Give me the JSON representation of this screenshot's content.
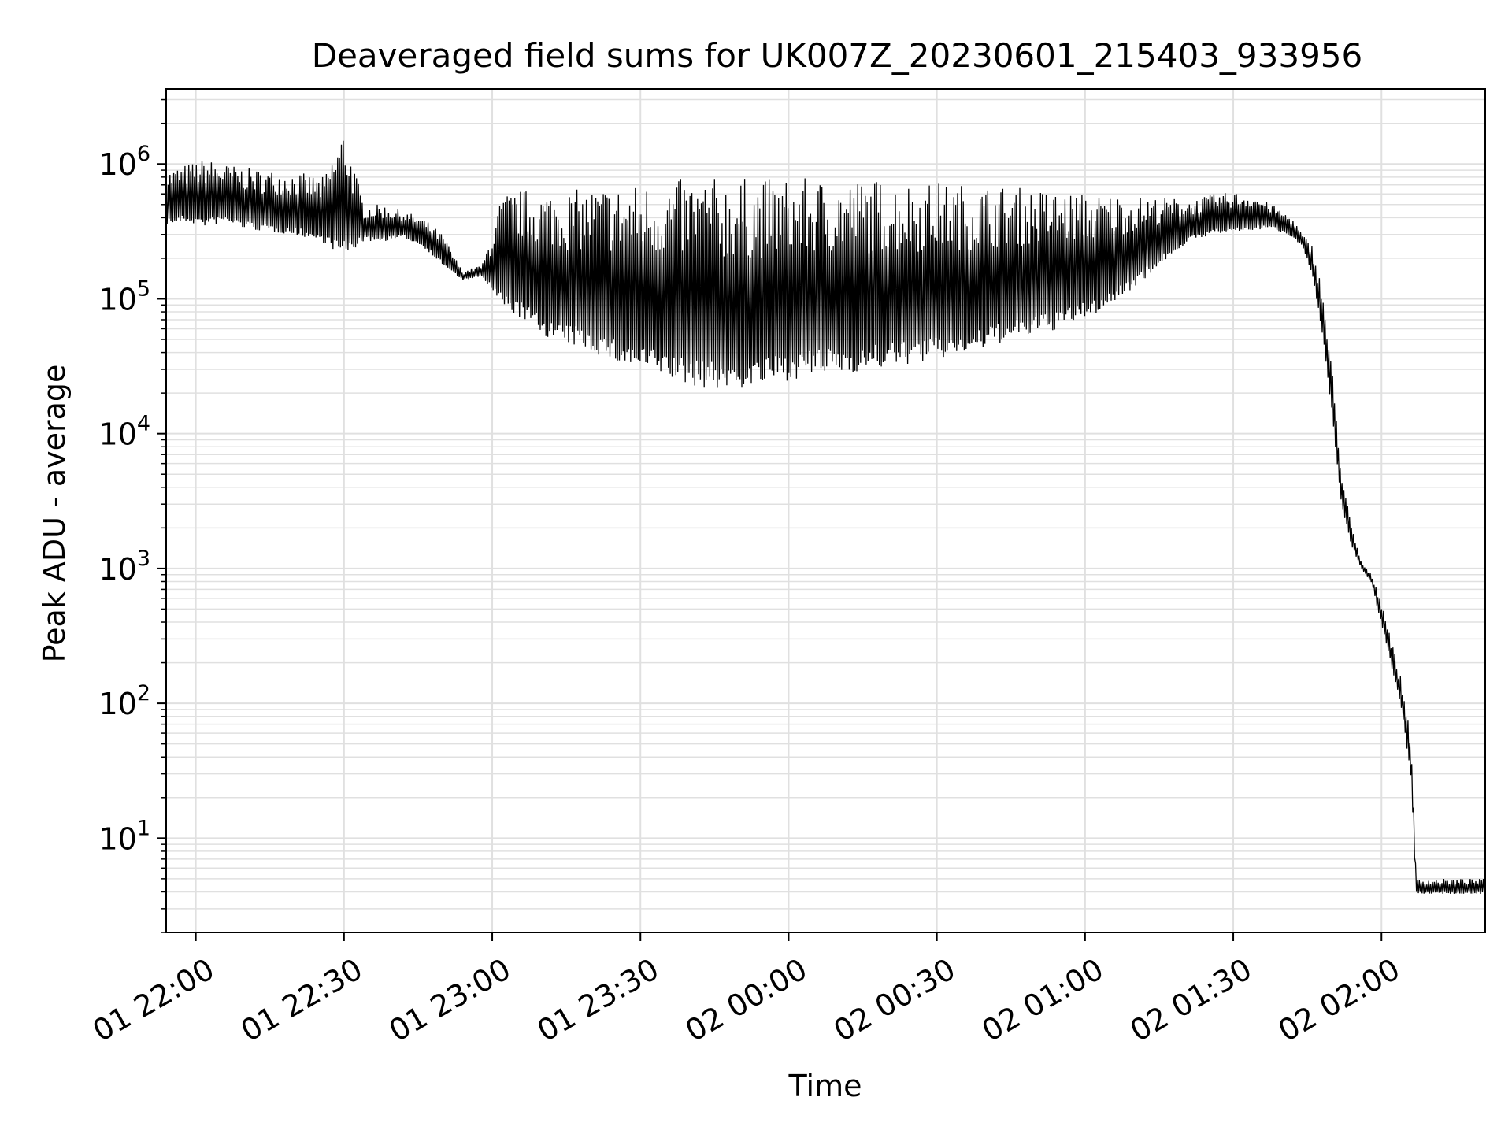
{
  "chart_data": {
    "type": "line",
    "title": "Deaveraged field sums for UK007Z_20230601_215403_933956",
    "xlabel": "Time",
    "ylabel": "Peak ADU - average",
    "yscale": "log",
    "ylim": [
      2,
      3600000
    ],
    "xlim": [
      "2023-06-01 21:54:00",
      "2023-06-02 02:21:00"
    ],
    "grid": true,
    "line_color": "#000000",
    "grid_color": "#e0e0e0",
    "x_ticks": [
      {
        "t": "2023-06-01 22:00:00",
        "label": "01 22:00"
      },
      {
        "t": "2023-06-01 22:30:00",
        "label": "01 22:30"
      },
      {
        "t": "2023-06-01 23:00:00",
        "label": "01 23:00"
      },
      {
        "t": "2023-06-01 23:30:00",
        "label": "01 23:30"
      },
      {
        "t": "2023-06-02 00:00:00",
        "label": "02 00:00"
      },
      {
        "t": "2023-06-02 00:30:00",
        "label": "02 00:30"
      },
      {
        "t": "2023-06-02 01:00:00",
        "label": "02 01:00"
      },
      {
        "t": "2023-06-02 01:30:00",
        "label": "02 01:30"
      },
      {
        "t": "2023-06-02 02:00:00",
        "label": "02 02:00"
      }
    ],
    "y_ticks": [
      {
        "value": 10,
        "base": "10",
        "exp": "1"
      },
      {
        "value": 100,
        "base": "10",
        "exp": "2"
      },
      {
        "value": 1000,
        "base": "10",
        "exp": "3"
      },
      {
        "value": 10000,
        "base": "10",
        "exp": "4"
      },
      {
        "value": 100000,
        "base": "10",
        "exp": "5"
      },
      {
        "value": 1000000,
        "base": "10",
        "exp": "6"
      }
    ],
    "series": [
      {
        "x": [
          "2023-06-01 21:54:00",
          "2023-06-01 21:58:00",
          "2023-06-01 22:02:00",
          "2023-06-01 22:06:00",
          "2023-06-01 22:10:00",
          "2023-06-01 22:14:00",
          "2023-06-01 22:18:00",
          "2023-06-01 22:22:00",
          "2023-06-01 22:26:00",
          "2023-06-01 22:30:00",
          "2023-06-01 22:34:00",
          "2023-06-01 22:38:00",
          "2023-06-01 22:42:00",
          "2023-06-01 22:46:00",
          "2023-06-01 22:50:00",
          "2023-06-01 22:54:00",
          "2023-06-01 22:58:00",
          "2023-06-01 23:02:00",
          "2023-06-01 23:06:00",
          "2023-06-01 23:10:00",
          "2023-06-01 23:14:00",
          "2023-06-01 23:18:00",
          "2023-06-01 23:22:00",
          "2023-06-01 23:26:00",
          "2023-06-01 23:30:00",
          "2023-06-01 23:34:00",
          "2023-06-01 23:38:00",
          "2023-06-01 23:42:00",
          "2023-06-01 23:46:00",
          "2023-06-01 23:50:00",
          "2023-06-01 23:54:00",
          "2023-06-01 23:58:00",
          "2023-06-02 00:02:00",
          "2023-06-02 00:06:00",
          "2023-06-02 00:10:00",
          "2023-06-02 00:14:00",
          "2023-06-02 00:18:00",
          "2023-06-02 00:22:00",
          "2023-06-02 00:26:00",
          "2023-06-02 00:30:00",
          "2023-06-02 00:34:00",
          "2023-06-02 00:38:00",
          "2023-06-02 00:42:00",
          "2023-06-02 00:46:00",
          "2023-06-02 00:50:00",
          "2023-06-02 00:54:00",
          "2023-06-02 00:58:00",
          "2023-06-02 01:02:00",
          "2023-06-02 01:06:00",
          "2023-06-02 01:10:00",
          "2023-06-02 01:14:00",
          "2023-06-02 01:18:00",
          "2023-06-02 01:22:00",
          "2023-06-02 01:26:00",
          "2023-06-02 01:30:00",
          "2023-06-02 01:34:00",
          "2023-06-02 01:38:00",
          "2023-06-02 01:42:00",
          "2023-06-02 01:44:00",
          "2023-06-02 01:46:00",
          "2023-06-02 01:48:00",
          "2023-06-02 01:50:00",
          "2023-06-02 01:52:00",
          "2023-06-02 01:54:00",
          "2023-06-02 01:56:00",
          "2023-06-02 01:58:00",
          "2023-06-02 02:00:00",
          "2023-06-02 02:02:00",
          "2023-06-02 02:04:00",
          "2023-06-02 02:06:00",
          "2023-06-02 02:07:00",
          "2023-06-02 02:10:00",
          "2023-06-02 02:14:00",
          "2023-06-02 02:18:00",
          "2023-06-02 02:21:00"
        ],
        "y": [
          400000,
          420000,
          400000,
          420000,
          380000,
          360000,
          350000,
          330000,
          300000,
          270000,
          290000,
          290000,
          300000,
          260000,
          190000,
          140000,
          150000,
          110000,
          95000,
          75000,
          65000,
          62000,
          55000,
          48000,
          45000,
          42000,
          37000,
          35000,
          34000,
          34000,
          36000,
          38000,
          40000,
          42000,
          43000,
          44000,
          46000,
          48000,
          50000,
          52000,
          56000,
          58000,
          65000,
          70000,
          75000,
          80000,
          90000,
          100000,
          120000,
          150000,
          190000,
          250000,
          300000,
          330000,
          340000,
          350000,
          350000,
          300000,
          250000,
          160000,
          60000,
          15000,
          3000,
          1500,
          1000,
          800,
          400,
          200,
          100,
          30,
          4,
          4,
          4,
          4,
          4
        ],
        "y_upper": [
          900000,
          1000000,
          1100000,
          1000000,
          950000,
          900000,
          900000,
          850000,
          800000,
          1900000,
          500000,
          500000,
          450000,
          400000,
          300000,
          160000,
          180000,
          600000,
          650000,
          650000,
          650000,
          650000,
          700000,
          700000,
          720000,
          750000,
          780000,
          800000,
          800000,
          800000,
          790000,
          790000,
          790000,
          780000,
          780000,
          780000,
          780000,
          760000,
          750000,
          740000,
          720000,
          710000,
          700000,
          680000,
          660000,
          640000,
          620000,
          600000,
          600000,
          580000,
          570000,
          560000,
          550000,
          600000,
          620000,
          600000,
          500000,
          400000,
          300000,
          250000,
          120000,
          30000,
          5000,
          2000,
          1100,
          900,
          600,
          300,
          150,
          60,
          5,
          5,
          5,
          5,
          5
        ]
      }
    ]
  }
}
